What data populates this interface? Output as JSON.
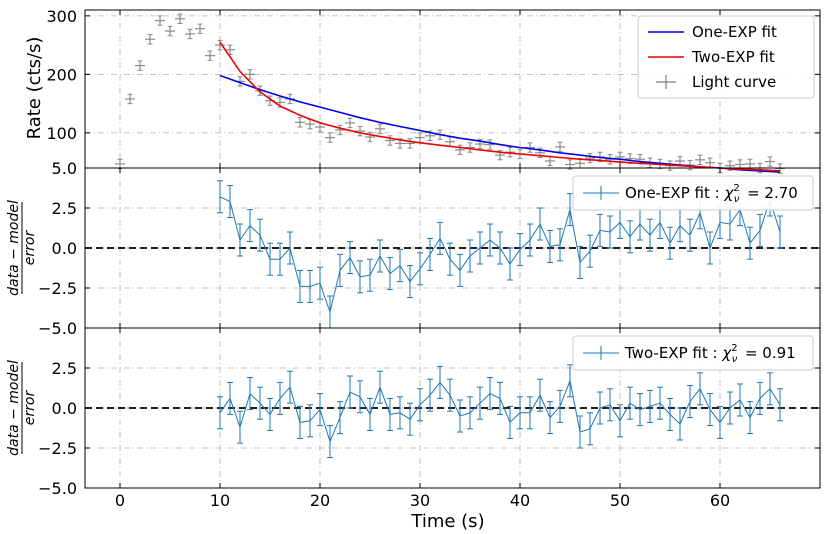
{
  "chart_data": [
    {
      "type": "scatter",
      "xlabel": "Time (s)",
      "ylabel": "Rate (cts/s)",
      "xlim": [
        -3.5,
        70
      ],
      "ylim": [
        40,
        310
      ],
      "yticks": [
        100,
        200,
        300
      ],
      "extra_ytick_label": "5.0",
      "grid": true,
      "legend_position": "top-right",
      "legend": [
        {
          "label": "One-EXP fit",
          "color": "#0000ee",
          "kind": "line"
        },
        {
          "label": "Two-EXP fit",
          "color": "#ee0000",
          "kind": "line"
        },
        {
          "label": "Light curve",
          "color": "#808080",
          "kind": "errorbar"
        }
      ],
      "series": [
        {
          "name": "Light curve",
          "x": [
            0,
            1,
            2,
            3,
            4,
            5,
            6,
            7,
            8,
            9,
            10,
            11,
            12,
            13,
            14,
            15,
            16,
            17,
            18,
            19,
            20,
            21,
            22,
            23,
            24,
            25,
            26,
            27,
            28,
            29,
            30,
            31,
            32,
            33,
            34,
            35,
            36,
            37,
            38,
            39,
            40,
            41,
            42,
            43,
            44,
            45,
            46,
            47,
            48,
            49,
            50,
            51,
            52,
            53,
            54,
            55,
            56,
            57,
            58,
            59,
            60,
            61,
            62,
            63,
            64,
            65,
            66
          ],
          "y": [
            47,
            158,
            215,
            260,
            292,
            274,
            295,
            269,
            278,
            232,
            250,
            242,
            188,
            200,
            172,
            155,
            152,
            158,
            118,
            115,
            110,
            92,
            105,
            117,
            103,
            93,
            107,
            87,
            82,
            82,
            92,
            95,
            97,
            85,
            71,
            75,
            81,
            80,
            62,
            67,
            64,
            75,
            66,
            52,
            76,
            46,
            48,
            57,
            59,
            55,
            59,
            56,
            55,
            49,
            47,
            44,
            52,
            45,
            54,
            49,
            40,
            44,
            46,
            47,
            40,
            51,
            39
          ],
          "yerr": 8
        },
        {
          "name": "One-EXP fit",
          "x": [
            10,
            12,
            14,
            16,
            18,
            20,
            22,
            24,
            26,
            28,
            30,
            32,
            34,
            36,
            38,
            40,
            42,
            44,
            46,
            48,
            50,
            52,
            54,
            56,
            58,
            60,
            62,
            64,
            66
          ],
          "y": [
            198,
            186,
            174,
            163,
            153,
            144,
            135,
            126,
            118,
            111,
            104,
            97,
            91,
            86,
            80,
            75,
            71,
            66,
            62,
            58,
            55,
            51,
            48,
            45,
            42,
            40,
            37,
            35,
            33
          ]
        },
        {
          "name": "Two-EXP fit",
          "x": [
            10,
            12,
            14,
            16,
            18,
            20,
            22,
            24,
            26,
            28,
            30,
            32,
            34,
            36,
            38,
            40,
            42,
            44,
            46,
            48,
            50,
            52,
            54,
            56,
            58,
            60,
            62,
            64,
            66
          ],
          "y": [
            255,
            205,
            170,
            146,
            130,
            117,
            108,
            100,
            94,
            88,
            83,
            79,
            75,
            71,
            67,
            64,
            61,
            58,
            55,
            53,
            50,
            48,
            46,
            44,
            42,
            40,
            38,
            37,
            35
          ]
        }
      ]
    },
    {
      "type": "line",
      "ylabel": "data − model / error",
      "xlim": [
        -3.5,
        70
      ],
      "ylim": [
        -5.0,
        5.0
      ],
      "yticks": [
        -5.0,
        -2.5,
        0.0,
        2.5
      ],
      "ytick_labels": [
        "−5.0",
        "−2.5",
        "0.0",
        "2.5"
      ],
      "grid": true,
      "zero_line": true,
      "legend_position": "top-right",
      "legend": [
        {
          "label": "One-EXP fit : χ²ᵥ = 2.70",
          "prefix": "One-EXP fit : ",
          "value": "= 2.70",
          "color": "#1f77b4"
        }
      ],
      "series": [
        {
          "name": "One-EXP fit : χ²ᵥ = 2.70",
          "x": [
            10,
            11,
            12,
            13,
            14,
            15,
            16,
            17,
            18,
            19,
            20,
            21,
            22,
            23,
            24,
            25,
            26,
            27,
            28,
            29,
            30,
            31,
            32,
            33,
            34,
            35,
            36,
            37,
            38,
            39,
            40,
            41,
            42,
            43,
            44,
            45,
            46,
            47,
            48,
            49,
            50,
            51,
            52,
            53,
            54,
            55,
            56,
            57,
            58,
            59,
            60,
            61,
            62,
            63,
            64,
            65,
            66
          ],
          "y": [
            3.2,
            2.9,
            0.5,
            1.4,
            0.8,
            -0.7,
            -0.7,
            0.0,
            -2.4,
            -2.4,
            -2.2,
            -4.0,
            -1.4,
            -0.6,
            -1.8,
            -1.7,
            -0.5,
            -1.6,
            -1.1,
            -2.1,
            -1.3,
            -0.4,
            0.6,
            -0.7,
            -1.4,
            -0.5,
            0.0,
            0.5,
            0.0,
            -1.0,
            -0.1,
            0.5,
            1.5,
            0.1,
            0.2,
            2.4,
            -0.9,
            -0.2,
            1.1,
            1.0,
            1.6,
            0.7,
            1.5,
            0.8,
            1.6,
            0.3,
            1.4,
            0.8,
            2.2,
            0.0,
            1.6,
            1.5,
            2.4,
            0.3,
            1.1,
            3.0,
            1.0
          ],
          "yerr": 1.0
        }
      ]
    },
    {
      "type": "line",
      "ylabel": "data − model / error",
      "xlabel": "Time (s)",
      "xlim": [
        -3.5,
        70
      ],
      "ylim": [
        -5.0,
        5.0
      ],
      "xticks": [
        0,
        10,
        20,
        30,
        40,
        50,
        60
      ],
      "yticks": [
        -5.0,
        -2.5,
        0.0,
        2.5
      ],
      "ytick_labels": [
        "−5.0",
        "−2.5",
        "0.0",
        "2.5"
      ],
      "grid": true,
      "zero_line": true,
      "legend_position": "top-right",
      "legend": [
        {
          "label": "Two-EXP fit : χ²ᵥ = 0.91",
          "prefix": "Two-EXP fit : ",
          "value": "= 0.91",
          "color": "#1f77b4"
        }
      ],
      "series": [
        {
          "name": "Two-EXP fit : χ²ᵥ = 0.91",
          "x": [
            10,
            11,
            12,
            13,
            14,
            15,
            16,
            17,
            18,
            19,
            20,
            21,
            22,
            23,
            24,
            25,
            26,
            27,
            28,
            29,
            30,
            31,
            32,
            33,
            34,
            35,
            36,
            37,
            38,
            39,
            40,
            41,
            42,
            43,
            44,
            45,
            46,
            47,
            48,
            49,
            50,
            51,
            52,
            53,
            54,
            55,
            56,
            57,
            58,
            59,
            60,
            61,
            62,
            63,
            64,
            65,
            66
          ],
          "y": [
            -0.3,
            0.6,
            -1.2,
            0.9,
            0.3,
            -0.4,
            0.6,
            1.3,
            -0.9,
            -0.8,
            -0.1,
            -2.1,
            -0.6,
            1.0,
            0.7,
            -0.4,
            1.3,
            -0.4,
            -0.3,
            -0.7,
            0.2,
            0.8,
            1.6,
            0.8,
            -0.5,
            -0.3,
            0.3,
            0.9,
            0.6,
            -0.9,
            -0.3,
            -0.3,
            0.8,
            -0.6,
            0.1,
            1.7,
            -1.5,
            -1.3,
            0.0,
            0.2,
            -0.8,
            0.3,
            -0.1,
            0.1,
            0.3,
            -0.4,
            -1.0,
            0.4,
            1.2,
            -0.1,
            -0.9,
            0.0,
            0.5,
            -0.6,
            0.6,
            1.2,
            0.2
          ],
          "yerr": 1.0
        }
      ]
    }
  ]
}
